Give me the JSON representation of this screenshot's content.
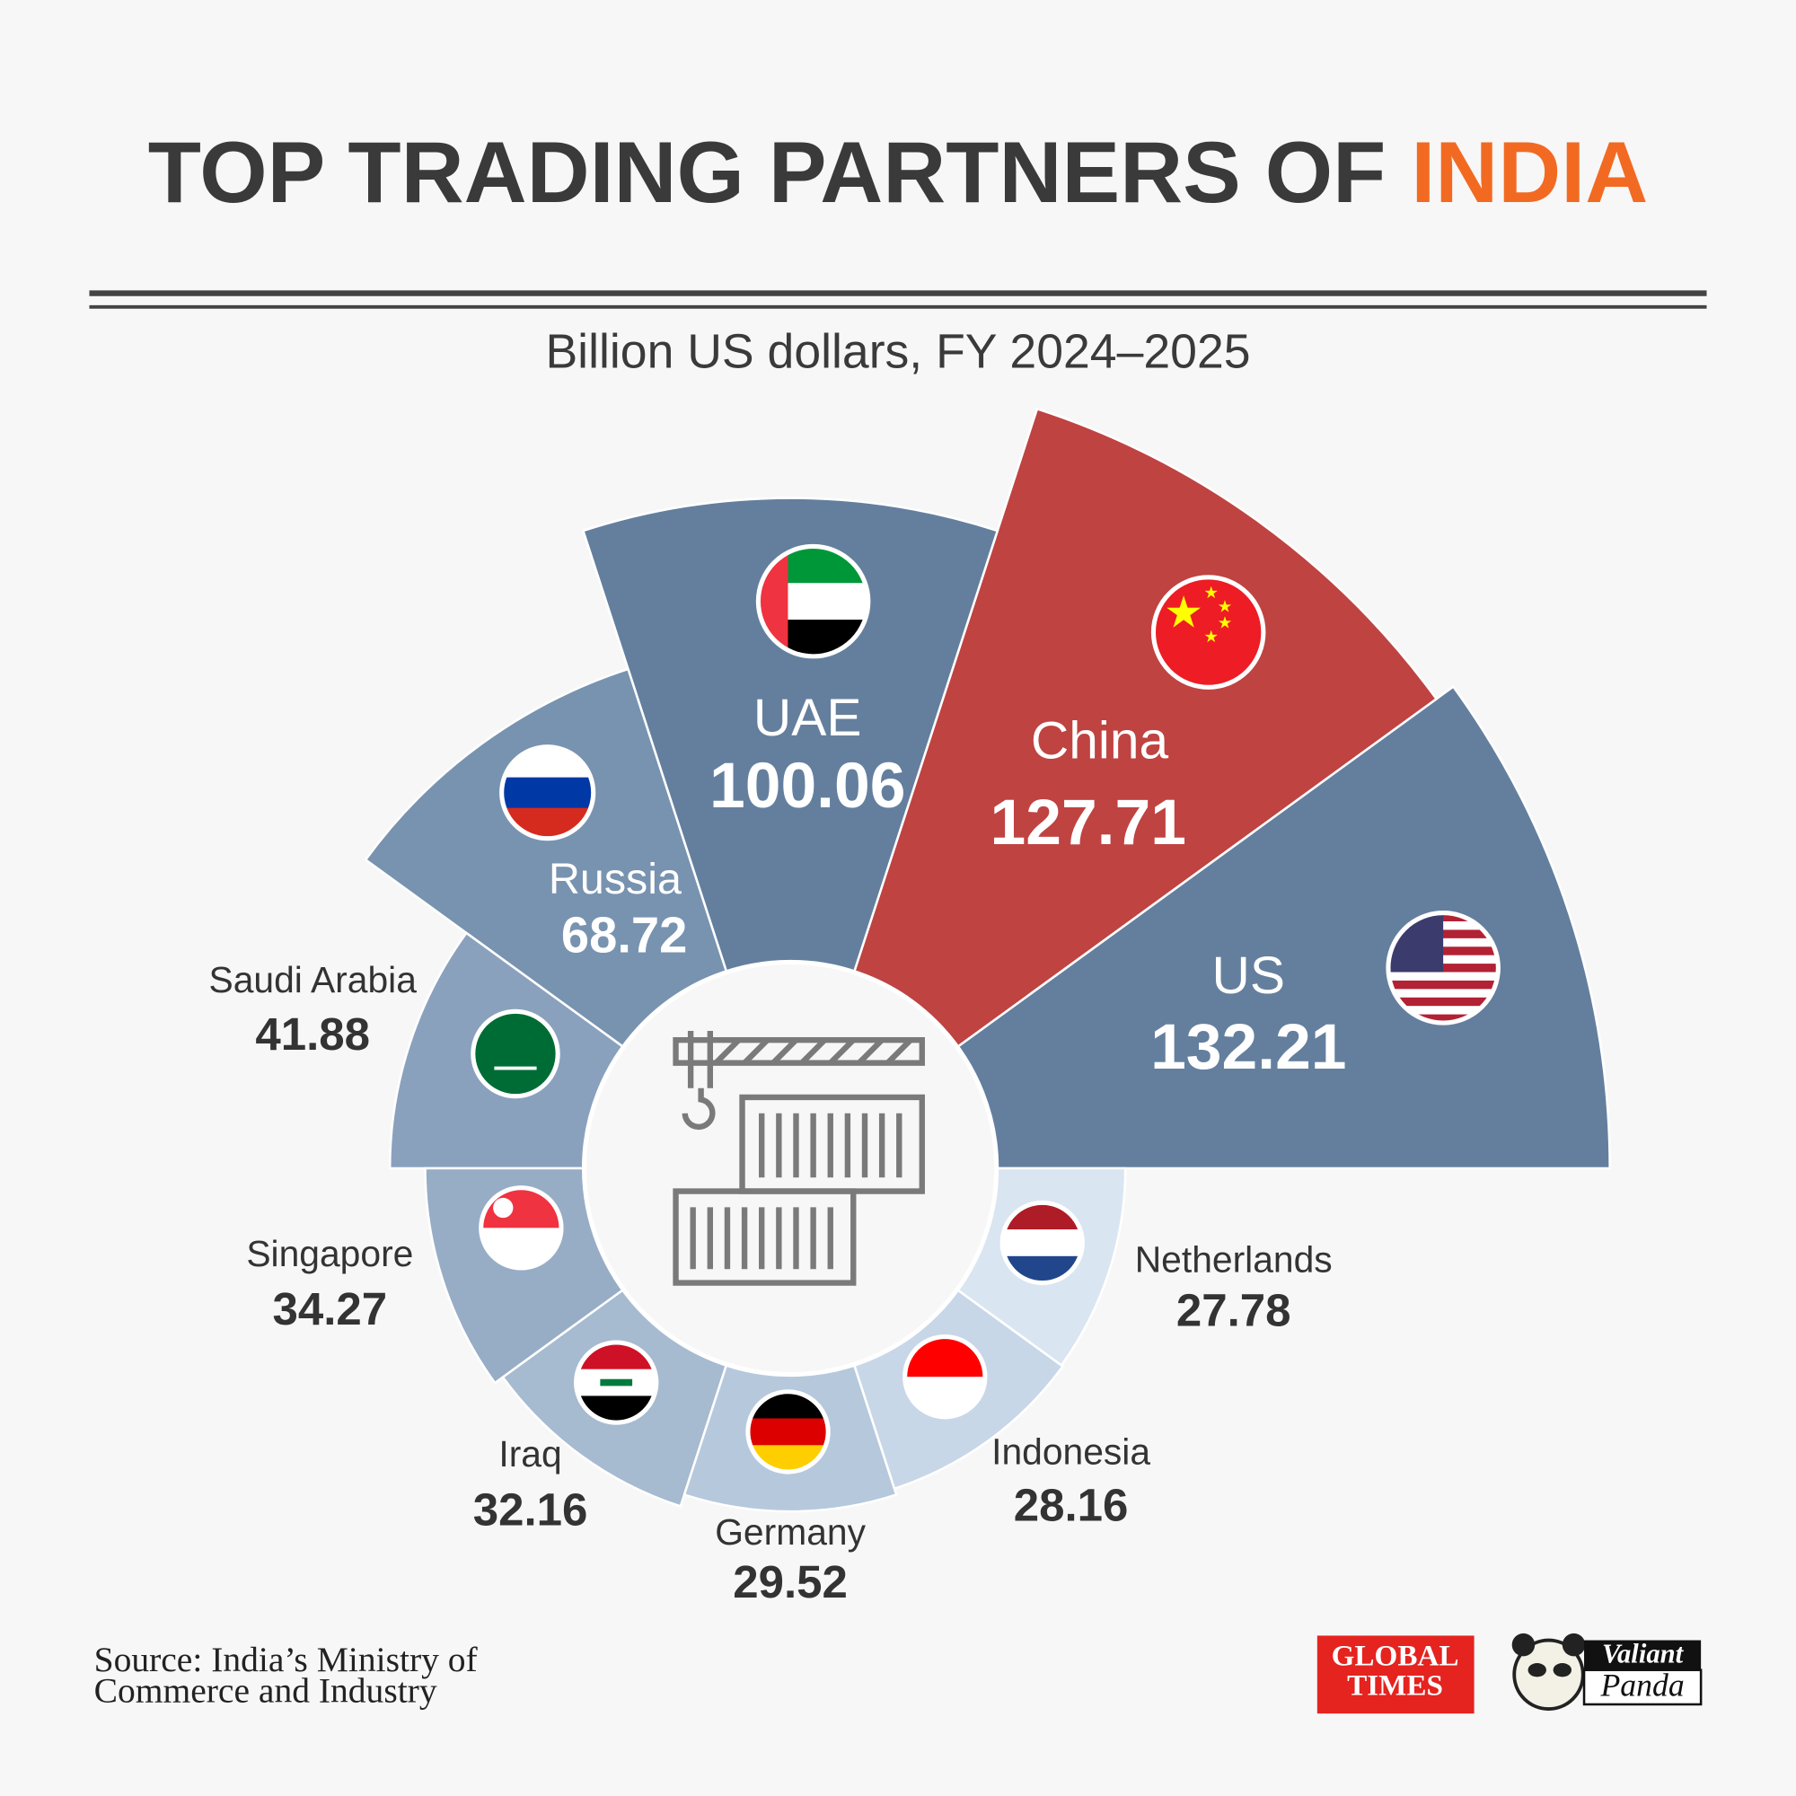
{
  "chart_data": {
    "type": "radial-bar",
    "title": "TOP TRADING PARTNERS OF",
    "title_highlight": "INDIA",
    "subtitle": "Billion US dollars, FY 2024–2025",
    "categories": [
      "US",
      "China",
      "UAE",
      "Russia",
      "Saudi Arabia",
      "Singapore",
      "Iraq",
      "Germany",
      "Indonesia",
      "Netherlands"
    ],
    "values": [
      132.21,
      127.71,
      100.06,
      68.72,
      41.88,
      34.27,
      32.16,
      29.52,
      28.16,
      27.78
    ],
    "colors": [
      "#647f9e",
      "#bf4341",
      "#647f9e",
      "#7893b0",
      "#8aa1bd",
      "#97adc6",
      "#a6bad0",
      "#b6c8dc",
      "#c8d7e7",
      "#d9e5f1"
    ]
  },
  "source": [
    "Source: India’s Ministry of",
    "Commerce and Industry"
  ],
  "logos": {
    "global_times": [
      "GLOBAL",
      "TIMES"
    ],
    "valiant_panda": [
      "Valiant",
      "Panda"
    ]
  }
}
